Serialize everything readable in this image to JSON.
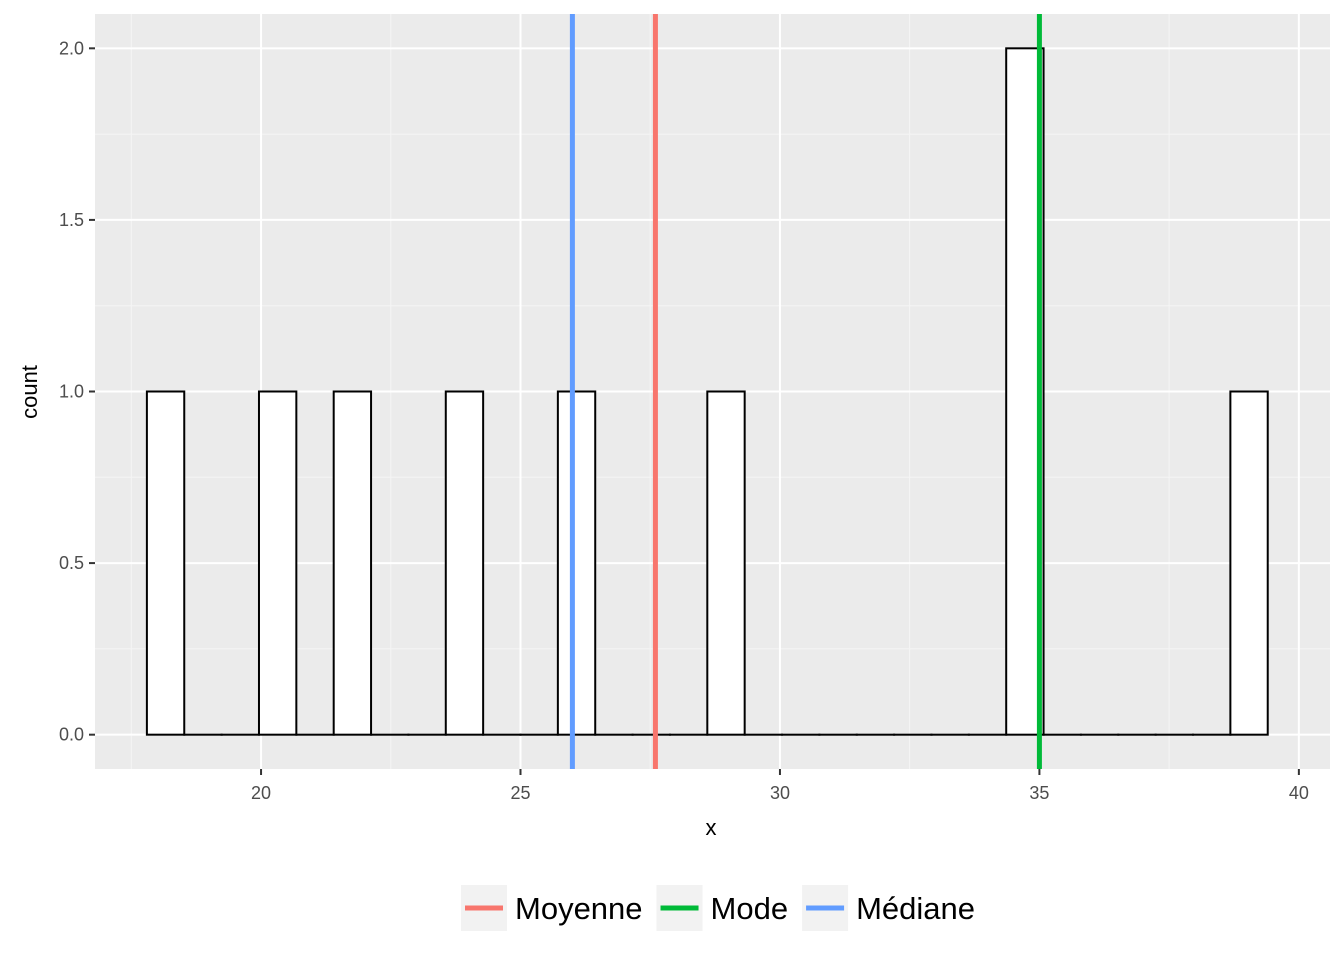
{
  "chart_data": {
    "type": "bar",
    "subtype": "histogram",
    "xlabel": "x",
    "ylabel": "count",
    "xlim": [
      16.8,
      40.6
    ],
    "ylim": [
      -0.1,
      2.1
    ],
    "x_ticks": [
      20,
      25,
      30,
      35,
      40
    ],
    "x_tick_labels": [
      "20",
      "25",
      "30",
      "35",
      "40"
    ],
    "y_ticks": [
      0.0,
      0.5,
      1.0,
      1.5,
      2.0
    ],
    "y_tick_labels": [
      "0.0",
      "0.5",
      "1.0",
      "1.5",
      "2.0"
    ],
    "grid": true,
    "bin_width": 0.72,
    "bins": [
      {
        "xmin": 17.8,
        "xmax": 18.52,
        "count": 1
      },
      {
        "xmin": 18.52,
        "xmax": 19.24,
        "count": 0
      },
      {
        "xmin": 19.24,
        "xmax": 19.96,
        "count": 0
      },
      {
        "xmin": 19.96,
        "xmax": 20.68,
        "count": 1
      },
      {
        "xmin": 20.68,
        "xmax": 21.4,
        "count": 0
      },
      {
        "xmin": 21.4,
        "xmax": 22.12,
        "count": 1
      },
      {
        "xmin": 22.12,
        "xmax": 22.84,
        "count": 0
      },
      {
        "xmin": 22.84,
        "xmax": 23.56,
        "count": 0
      },
      {
        "xmin": 23.56,
        "xmax": 24.28,
        "count": 1
      },
      {
        "xmin": 24.28,
        "xmax": 25.0,
        "count": 0
      },
      {
        "xmin": 25.0,
        "xmax": 25.72,
        "count": 0
      },
      {
        "xmin": 25.72,
        "xmax": 26.44,
        "count": 1
      },
      {
        "xmin": 26.44,
        "xmax": 27.16,
        "count": 0
      },
      {
        "xmin": 27.16,
        "xmax": 27.88,
        "count": 0
      },
      {
        "xmin": 27.88,
        "xmax": 28.6,
        "count": 0
      },
      {
        "xmin": 28.6,
        "xmax": 29.32,
        "count": 1
      },
      {
        "xmin": 29.32,
        "xmax": 30.04,
        "count": 0
      },
      {
        "xmin": 30.04,
        "xmax": 30.76,
        "count": 0
      },
      {
        "xmin": 30.76,
        "xmax": 31.48,
        "count": 0
      },
      {
        "xmin": 31.48,
        "xmax": 32.2,
        "count": 0
      },
      {
        "xmin": 32.2,
        "xmax": 32.92,
        "count": 0
      },
      {
        "xmin": 32.92,
        "xmax": 33.64,
        "count": 0
      },
      {
        "xmin": 33.64,
        "xmax": 34.36,
        "count": 0
      },
      {
        "xmin": 34.36,
        "xmax": 35.08,
        "count": 2
      },
      {
        "xmin": 35.08,
        "xmax": 35.8,
        "count": 0
      },
      {
        "xmin": 35.8,
        "xmax": 36.52,
        "count": 0
      },
      {
        "xmin": 36.52,
        "xmax": 37.24,
        "count": 0
      },
      {
        "xmin": 37.24,
        "xmax": 37.96,
        "count": 0
      },
      {
        "xmin": 37.96,
        "xmax": 38.68,
        "count": 0
      },
      {
        "xmin": 38.68,
        "xmax": 39.4,
        "count": 1
      }
    ],
    "vlines": [
      {
        "name": "Moyenne",
        "x": 27.6,
        "color": "#F8766D"
      },
      {
        "name": "Mode",
        "x": 35.0,
        "color": "#00BA38"
      },
      {
        "name": "Médiane",
        "x": 26.0,
        "color": "#619CFF"
      }
    ],
    "legend": {
      "position": "bottom",
      "entries": [
        {
          "label": "Moyenne",
          "color": "#F8766D"
        },
        {
          "label": "Mode",
          "color": "#00BA38"
        },
        {
          "label": "Médiane",
          "color": "#619CFF"
        }
      ]
    },
    "colors": {
      "panel_background": "#EBEBEB",
      "grid_major": "#FFFFFF",
      "grid_minor": "#F5F5F5",
      "bar_fill": "#FFFFFF",
      "bar_outline": "#000000",
      "tick_text": "#4D4D4D",
      "legend_key_background": "#F2F2F2"
    }
  }
}
